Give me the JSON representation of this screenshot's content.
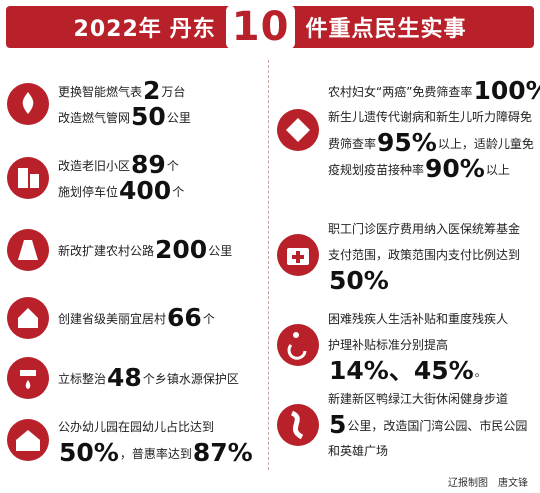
{
  "header": {
    "year": "2022年",
    "city": "丹东",
    "count": "10",
    "title": "件重点民生实事"
  },
  "items": [
    {
      "lines": [
        [
          {
            "text": "更换智能燃气表"
          },
          {
            "big": "2"
          },
          {
            "text": "万台"
          }
        ],
        [
          {
            "text": "改造燃气管网"
          },
          {
            "big": "50"
          },
          {
            "text": "公里"
          }
        ]
      ]
    },
    {
      "lines": [
        [
          {
            "text": "改造老旧小区"
          },
          {
            "big": "89"
          },
          {
            "text": "个"
          }
        ],
        [
          {
            "text": "施划停车位"
          },
          {
            "big": "400"
          },
          {
            "text": "个"
          }
        ]
      ]
    },
    {
      "lines": [
        [
          {
            "text": "新改扩建农村公路"
          },
          {
            "big": "200"
          },
          {
            "text": "公里"
          }
        ]
      ]
    },
    {
      "lines": [
        [
          {
            "text": "创建省级美丽宜居村"
          },
          {
            "big": "66"
          },
          {
            "text": "个"
          }
        ]
      ]
    },
    {
      "lines": [
        [
          {
            "text": "立标整治"
          },
          {
            "big": "48"
          },
          {
            "text": "个乡镇水源保护区"
          }
        ]
      ]
    },
    {
      "lines": [
        [
          {
            "text": "公办幼儿园在园幼儿占比达到"
          }
        ],
        [
          {
            "big": "50%"
          },
          {
            "text": "，普惠率达到"
          },
          {
            "big": "87%"
          }
        ]
      ]
    },
    {
      "lines": [
        [
          {
            "text": "农村妇女“两癌”免费筛查率"
          },
          {
            "big": "100%"
          },
          {
            "text": "；"
          }
        ],
        [
          {
            "text": "新生儿遗传代谢病和新生儿听力障碍免"
          }
        ],
        [
          {
            "text": "费筛查率"
          },
          {
            "big": "95%"
          },
          {
            "text": "以上，适龄儿童免"
          }
        ],
        [
          {
            "text": "疫规划疫苗接种率"
          },
          {
            "big": "90%"
          },
          {
            "text": "以上"
          }
        ]
      ]
    },
    {
      "lines": [
        [
          {
            "text": "职工门诊医疗费用纳入医保统筹基金"
          }
        ],
        [
          {
            "text": "支付范围，政策范围内支付比例达到"
          }
        ],
        [
          {
            "big": "50%"
          }
        ]
      ]
    },
    {
      "lines": [
        [
          {
            "text": "困难残疾人生活补贴和重度残疾人"
          }
        ],
        [
          {
            "text": "护理补贴标准分别提高"
          }
        ],
        [
          {
            "big": "14%、45%"
          },
          {
            "text": "。"
          }
        ]
      ]
    },
    {
      "lines": [
        [
          {
            "text": "新建新区鸭绿江大街休闲健身步道"
          }
        ],
        [
          {
            "big": "5"
          },
          {
            "text": "公里，改造国门湾公园、市民公园"
          }
        ],
        [
          {
            "text": "和英雄广场"
          }
        ]
      ]
    }
  ],
  "credit": "辽报制图　唐文锋"
}
